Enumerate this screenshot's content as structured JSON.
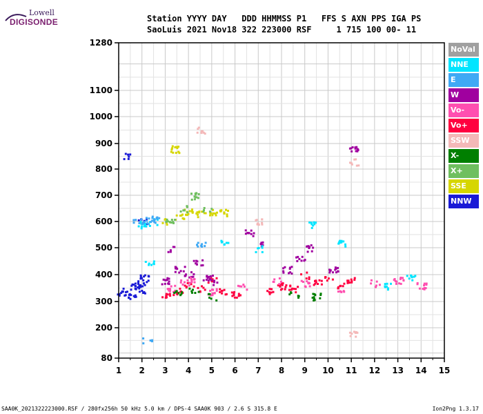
{
  "logo": {
    "line1": "Lowell",
    "line2": "DIGISONDE"
  },
  "header": {
    "line1": "Station YYYY DAY   DDD HHMMSS P1   FFS S AXN PPS IGA PS",
    "line2": "SaoLuis 2021 Nov18 322 223000 RSF     1 715 100 00- 11"
  },
  "legend": [
    {
      "label": "NoVal",
      "color": "#a0a0a0"
    },
    {
      "label": "NNE",
      "color": "#00e5ff"
    },
    {
      "label": "E",
      "color": "#3fa9f5"
    },
    {
      "label": "W",
      "color": "#a0009f"
    },
    {
      "label": "Vo-",
      "color": "#ff4fb0"
    },
    {
      "label": "Vo+",
      "color": "#ff0040"
    },
    {
      "label": "SSW",
      "color": "#f4b8b8"
    },
    {
      "label": "X-",
      "color": "#007f00"
    },
    {
      "label": "X+",
      "color": "#6fbf5f"
    },
    {
      "label": "SSE",
      "color": "#d6d600"
    },
    {
      "label": "NNW",
      "color": "#1a1ad6"
    }
  ],
  "chart_data": {
    "type": "scatter",
    "title": "",
    "xlabel": "",
    "ylabel": "",
    "x_range": [
      1,
      15
    ],
    "y_range": [
      80,
      1280
    ],
    "x_ticks": [
      1,
      2,
      3,
      4,
      5,
      6,
      7,
      8,
      9,
      10,
      11,
      12,
      13,
      14,
      15
    ],
    "y_ticks": [
      80,
      200,
      300,
      400,
      500,
      600,
      700,
      800,
      900,
      1000,
      1100,
      1280
    ],
    "grid": true,
    "series": [
      {
        "name": "NNW",
        "points": [
          [
            1.1,
            330
          ],
          [
            1.3,
            340
          ],
          [
            1.5,
            320
          ],
          [
            1.7,
            360
          ],
          [
            1.9,
            345
          ],
          [
            2.0,
            370
          ],
          [
            2.1,
            390
          ],
          [
            1.4,
            850
          ],
          [
            2.0,
            600
          ]
        ]
      },
      {
        "name": "Vo+",
        "points": [
          [
            3.0,
            330
          ],
          [
            3.5,
            340
          ],
          [
            4.0,
            360
          ],
          [
            4.5,
            350
          ],
          [
            5.0,
            380
          ],
          [
            5.5,
            340
          ],
          [
            6.0,
            330
          ],
          [
            7.5,
            340
          ],
          [
            8.0,
            360
          ],
          [
            8.5,
            350
          ],
          [
            9.0,
            400
          ],
          [
            9.5,
            370
          ],
          [
            10.0,
            390
          ],
          [
            10.5,
            360
          ],
          [
            11.0,
            380
          ]
        ]
      },
      {
        "name": "W",
        "points": [
          [
            3.0,
            380
          ],
          [
            3.3,
            500
          ],
          [
            3.6,
            420
          ],
          [
            4.0,
            400
          ],
          [
            4.4,
            450
          ],
          [
            4.8,
            390
          ],
          [
            5.2,
            370
          ],
          [
            6.6,
            560
          ],
          [
            7.0,
            520
          ],
          [
            8.2,
            420
          ],
          [
            8.8,
            460
          ],
          [
            9.2,
            500
          ],
          [
            10.2,
            420
          ],
          [
            11.1,
            880
          ]
        ]
      },
      {
        "name": "Vo-",
        "points": [
          [
            3.2,
            350
          ],
          [
            3.8,
            370
          ],
          [
            4.2,
            380
          ],
          [
            5.0,
            340
          ],
          [
            6.3,
            360
          ],
          [
            7.8,
            380
          ],
          [
            9.0,
            370
          ],
          [
            10.5,
            350
          ],
          [
            12.0,
            370
          ],
          [
            13.0,
            380
          ],
          [
            14.0,
            360
          ]
        ]
      },
      {
        "name": "SSE",
        "points": [
          [
            3.0,
            600
          ],
          [
            3.4,
            880
          ],
          [
            3.6,
            620
          ],
          [
            4.0,
            640
          ],
          [
            4.5,
            630
          ],
          [
            5.0,
            640
          ],
          [
            5.5,
            635
          ]
        ]
      },
      {
        "name": "X+",
        "points": [
          [
            3.2,
            610
          ],
          [
            3.8,
            650
          ],
          [
            4.2,
            700
          ],
          [
            4.8,
            650
          ]
        ]
      },
      {
        "name": "X-",
        "points": [
          [
            3.5,
            330
          ],
          [
            4.2,
            340
          ],
          [
            5.0,
            320
          ],
          [
            8.5,
            330
          ],
          [
            9.5,
            320
          ]
        ]
      },
      {
        "name": "NNE",
        "points": [
          [
            2.0,
            590
          ],
          [
            2.5,
            600
          ],
          [
            2.3,
            440
          ],
          [
            5.5,
            520
          ],
          [
            7.0,
            500
          ],
          [
            9.3,
            590
          ],
          [
            10.5,
            520
          ],
          [
            12.5,
            360
          ],
          [
            13.5,
            390
          ]
        ]
      },
      {
        "name": "E",
        "points": [
          [
            1.8,
            600
          ],
          [
            2.2,
            605
          ],
          [
            2.6,
            610
          ],
          [
            2.2,
            150
          ],
          [
            4.5,
            520
          ]
        ]
      },
      {
        "name": "SSW",
        "points": [
          [
            4.5,
            950
          ],
          [
            7.0,
            600
          ],
          [
            11.1,
            830
          ],
          [
            11.1,
            180
          ]
        ]
      }
    ]
  },
  "footer": {
    "left": "SAA0K_2021322223000.RSF / 280fx256h 50 kHz 5.0 km / DPS-4 SAA0K 903 / 2.6 S 315.8 E",
    "right": "Ion2Png 1.3.17"
  }
}
